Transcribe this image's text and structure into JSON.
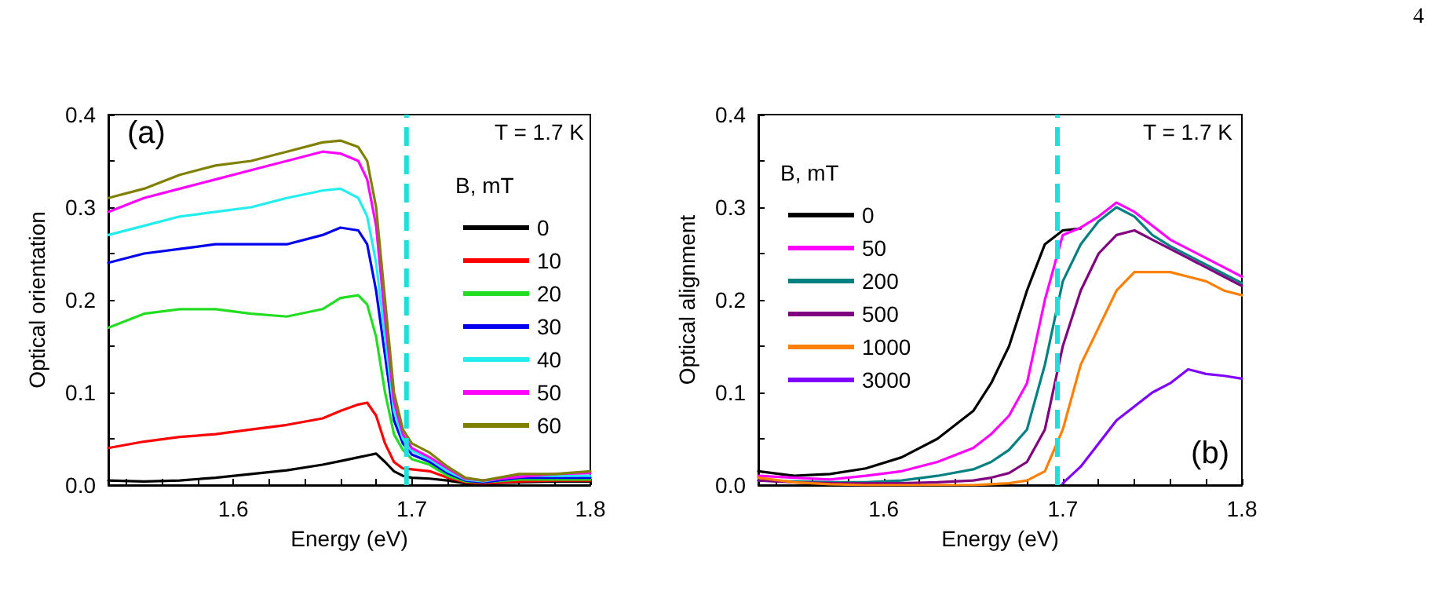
{
  "chart_data": [
    {
      "type": "line",
      "xlabel": "Energy (eV)",
      "ylabel": "Optical orientation",
      "legend_title": "B, mT",
      "annotations": [
        "(a)",
        "T = 1.7 K"
      ],
      "legend": "right",
      "grid": false,
      "marker": "none",
      "line_style": "solid",
      "xlim": [
        1.53,
        1.8
      ],
      "ylim": [
        0,
        0.4
      ],
      "xticks": [
        {
          "value": 1.54,
          "label": null
        },
        {
          "value": 1.56,
          "label": null
        },
        {
          "value": 1.58,
          "label": null
        },
        1.6,
        {
          "value": 1.62,
          "label": null
        },
        {
          "value": 1.64,
          "label": null
        },
        {
          "value": 1.66,
          "label": null
        },
        {
          "value": 1.68,
          "label": null
        },
        1.7,
        {
          "value": 1.72,
          "label": null
        },
        {
          "value": 1.74,
          "label": null
        },
        {
          "value": 1.76,
          "label": null
        },
        {
          "value": 1.78,
          "label": null
        },
        1.8
      ],
      "yticks": [
        {
          "value": 0,
          "label": "0.0"
        },
        {
          "value": 0.05,
          "label": null
        },
        0.1,
        {
          "value": 0.15,
          "label": null
        },
        0.2,
        {
          "value": 0.25,
          "label": null
        },
        0.3,
        {
          "value": 0.35,
          "label": null
        },
        0.4
      ],
      "ref_lines": [
        {
          "axis": "x",
          "value": 1.697,
          "color": "#22dddd",
          "line_style": "dashed"
        }
      ],
      "x": [
        1.53,
        1.55,
        1.57,
        1.59,
        1.61,
        1.63,
        1.65,
        1.66,
        1.67,
        1.675,
        1.68,
        1.685,
        1.69,
        1.695,
        1.7,
        1.71,
        1.72,
        1.73,
        1.74,
        1.76,
        1.78,
        1.8
      ],
      "series": [
        {
          "name": "0",
          "color": "#000000",
          "values": [
            0.005,
            0.004,
            0.005,
            0.008,
            0.012,
            0.016,
            0.022,
            0.026,
            0.03,
            0.032,
            0.034,
            0.025,
            0.015,
            0.01,
            0.008,
            0.007,
            0.005,
            0.002,
            0.002,
            0.003,
            0.004,
            0.004
          ]
        },
        {
          "name": "10",
          "color": "#ff0000",
          "values": [
            0.04,
            0.047,
            0.052,
            0.055,
            0.06,
            0.065,
            0.072,
            0.08,
            0.087,
            0.089,
            0.075,
            0.045,
            0.025,
            0.018,
            0.017,
            0.015,
            0.008,
            0.003,
            0.002,
            0.004,
            0.005,
            0.005
          ]
        },
        {
          "name": "20",
          "color": "#22dd22",
          "values": [
            0.17,
            0.185,
            0.19,
            0.19,
            0.185,
            0.182,
            0.19,
            0.202,
            0.205,
            0.195,
            0.16,
            0.1,
            0.055,
            0.038,
            0.028,
            0.022,
            0.01,
            0.004,
            0.003,
            0.006,
            0.006,
            0.006
          ]
        },
        {
          "name": "30",
          "color": "#0000ee",
          "values": [
            0.24,
            0.25,
            0.255,
            0.26,
            0.26,
            0.26,
            0.27,
            0.278,
            0.275,
            0.26,
            0.21,
            0.14,
            0.07,
            0.045,
            0.033,
            0.025,
            0.013,
            0.005,
            0.003,
            0.008,
            0.008,
            0.008
          ]
        },
        {
          "name": "40",
          "color": "#22eeee",
          "values": [
            0.27,
            0.28,
            0.29,
            0.295,
            0.3,
            0.31,
            0.318,
            0.32,
            0.31,
            0.29,
            0.24,
            0.16,
            0.08,
            0.05,
            0.037,
            0.028,
            0.015,
            0.006,
            0.004,
            0.01,
            0.01,
            0.01
          ]
        },
        {
          "name": "50",
          "color": "#ff00ff",
          "values": [
            0.295,
            0.31,
            0.32,
            0.33,
            0.34,
            0.35,
            0.36,
            0.358,
            0.35,
            0.33,
            0.28,
            0.18,
            0.09,
            0.055,
            0.04,
            0.03,
            0.018,
            0.007,
            0.005,
            0.009,
            0.012,
            0.013
          ]
        },
        {
          "name": "60",
          "color": "#808000",
          "values": [
            0.31,
            0.32,
            0.335,
            0.345,
            0.35,
            0.36,
            0.37,
            0.372,
            0.365,
            0.35,
            0.3,
            0.2,
            0.1,
            0.06,
            0.045,
            0.035,
            0.02,
            0.008,
            0.005,
            0.012,
            0.012,
            0.015
          ]
        }
      ]
    },
    {
      "type": "line",
      "xlabel": "Energy (eV)",
      "ylabel": "Optical alignment",
      "legend_title": "B, mT",
      "annotations": [
        "(b)",
        "T = 1.7 K",
        "4"
      ],
      "legend": "top left",
      "grid": false,
      "marker": "none",
      "line_style": "solid",
      "xlim": [
        1.53,
        1.8
      ],
      "ylim": [
        0,
        0.4
      ],
      "xticks": [
        {
          "value": 1.54,
          "label": null
        },
        {
          "value": 1.56,
          "label": null
        },
        {
          "value": 1.58,
          "label": null
        },
        1.6,
        {
          "value": 1.62,
          "label": null
        },
        {
          "value": 1.64,
          "label": null
        },
        {
          "value": 1.66,
          "label": null
        },
        {
          "value": 1.68,
          "label": null
        },
        1.7,
        {
          "value": 1.72,
          "label": null
        },
        {
          "value": 1.74,
          "label": null
        },
        {
          "value": 1.76,
          "label": null
        },
        {
          "value": 1.78,
          "label": null
        },
        1.8
      ],
      "yticks": [
        {
          "value": 0,
          "label": "0.0"
        },
        {
          "value": 0.05,
          "label": null
        },
        0.1,
        {
          "value": 0.15,
          "label": null
        },
        0.2,
        {
          "value": 0.25,
          "label": null
        },
        0.3,
        {
          "value": 0.35,
          "label": null
        },
        0.4
      ],
      "ref_lines": [
        {
          "axis": "x",
          "value": 1.697,
          "color": "#22dddd",
          "line_style": "dashed"
        }
      ],
      "x": [
        1.53,
        1.55,
        1.57,
        1.59,
        1.61,
        1.63,
        1.65,
        1.66,
        1.67,
        1.68,
        1.69,
        1.7,
        1.71,
        1.72,
        1.73,
        1.74,
        1.75,
        1.76,
        1.77,
        1.78,
        1.79,
        1.8
      ],
      "series": [
        {
          "name": "0",
          "color": "#000000",
          "values": [
            0.015,
            0.01,
            0.012,
            0.018,
            0.03,
            0.05,
            0.08,
            0.11,
            0.15,
            0.21,
            0.26,
            0.275,
            0.277,
            null,
            null,
            null,
            null,
            null,
            null,
            null,
            null,
            null
          ]
        },
        {
          "name": "50",
          "color": "#ff00ff",
          "values": [
            0.01,
            0.008,
            0.006,
            0.01,
            0.015,
            0.025,
            0.04,
            0.055,
            0.075,
            0.11,
            0.2,
            0.27,
            0.278,
            0.29,
            0.305,
            0.295,
            0.28,
            0.265,
            0.255,
            0.245,
            0.235,
            0.225
          ]
        },
        {
          "name": "200",
          "color": "#008080",
          "values": [
            0.005,
            0.004,
            0.003,
            0.003,
            0.005,
            0.01,
            0.017,
            0.025,
            0.038,
            0.06,
            0.13,
            0.22,
            0.26,
            0.285,
            0.3,
            0.29,
            0.27,
            0.258,
            0.248,
            0.238,
            0.228,
            0.218
          ]
        },
        {
          "name": "500",
          "color": "#800080",
          "values": [
            0.005,
            0.003,
            0.002,
            0.002,
            0.002,
            0.003,
            0.005,
            0.008,
            0.013,
            0.025,
            0.06,
            0.15,
            0.21,
            0.25,
            0.27,
            0.275,
            0.265,
            0.255,
            0.245,
            0.235,
            0.225,
            0.215
          ]
        },
        {
          "name": "1000",
          "color": "#ff8000",
          "values": [
            0.008,
            0.003,
            0.001,
            0,
            0,
            0,
            0,
            0.001,
            0.002,
            0.005,
            0.015,
            0.06,
            0.13,
            0.17,
            0.21,
            0.23,
            0.23,
            0.23,
            0.225,
            0.22,
            0.21,
            0.205
          ]
        },
        {
          "name": "3000",
          "color": "#8000ff",
          "values": [
            null,
            null,
            null,
            null,
            null,
            null,
            null,
            null,
            null,
            null,
            null,
            0.002,
            0.02,
            0.045,
            0.07,
            0.085,
            0.1,
            0.11,
            0.125,
            0.12,
            0.118,
            0.115
          ]
        }
      ]
    }
  ]
}
